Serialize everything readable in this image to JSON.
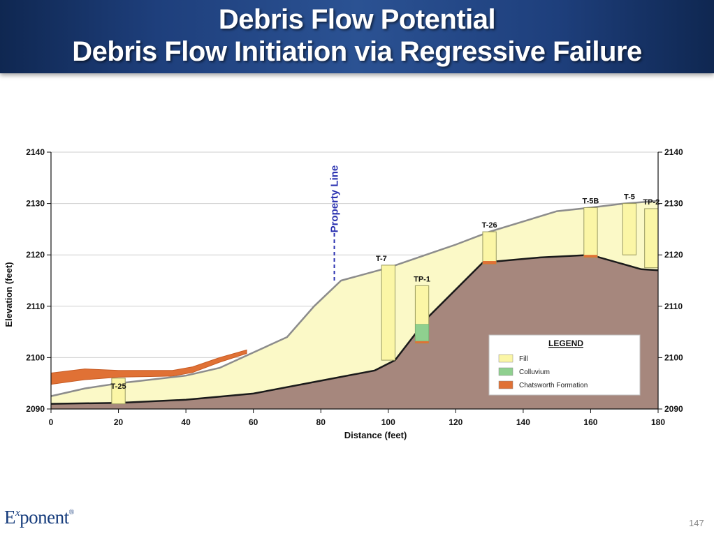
{
  "slide": {
    "title_line1": "Debris Flow Potential",
    "title_line2": "Debris Flow Initiation via Regressive Failure",
    "logo": {
      "main_start": "E",
      "superscript": "x",
      "main_end": "ponent",
      "registered": "®"
    },
    "page_number": "147"
  },
  "colors": {
    "title_bar": "#24488a",
    "fill": "#fbf9c7",
    "fill_boring": "#fbf6a6",
    "bedrock": "#a6877d",
    "colluvium": "#8fd08f",
    "chatsworth_formation": "#e07135",
    "ground_surface": "#8c8c8c",
    "property_line": "#2a31b0"
  },
  "chart_data": {
    "type": "cross-section",
    "xlabel": "Distance (feet)",
    "ylabel": "Elevation (feet)",
    "xlim": [
      0,
      180
    ],
    "ylim": [
      2090,
      2140
    ],
    "x_ticks": [
      "0",
      "20",
      "40",
      "60",
      "80",
      "100",
      "120",
      "140",
      "160",
      "180"
    ],
    "y_ticks": [
      "2090",
      "2100",
      "2110",
      "2120",
      "2130",
      "2140"
    ],
    "grid": true,
    "ground_surface": [
      [
        0,
        2092.5
      ],
      [
        10,
        2094
      ],
      [
        20,
        2095
      ],
      [
        40,
        2096.5
      ],
      [
        50,
        2098
      ],
      [
        60,
        2101
      ],
      [
        70,
        2104
      ],
      [
        78,
        2110
      ],
      [
        86,
        2115
      ],
      [
        100,
        2117.5
      ],
      [
        120,
        2122
      ],
      [
        130,
        2124.5
      ],
      [
        150,
        2128.5
      ],
      [
        160,
        2129.2
      ],
      [
        170,
        2130
      ],
      [
        180,
        2130.5
      ]
    ],
    "fill_base": [
      [
        0,
        2091
      ],
      [
        20,
        2091.2
      ],
      [
        40,
        2091.8
      ],
      [
        60,
        2093
      ],
      [
        80,
        2095.5
      ],
      [
        96,
        2097.5
      ],
      [
        102,
        2099.5
      ],
      [
        112,
        2108
      ],
      [
        128,
        2118.5
      ],
      [
        145,
        2119.5
      ],
      [
        160,
        2120
      ],
      [
        175,
        2117.2
      ],
      [
        180,
        2117
      ]
    ],
    "property_line": {
      "x": 84,
      "label": "Property Line"
    },
    "chatsworth_formation_band": {
      "top": [
        [
          0,
          2097
        ],
        [
          10,
          2097.8
        ],
        [
          20,
          2097.5
        ],
        [
          36,
          2097.5
        ],
        [
          42,
          2098.2
        ],
        [
          50,
          2100
        ],
        [
          58,
          2101.5
        ]
      ],
      "bottom": [
        [
          58,
          2100.8
        ],
        [
          50,
          2099.1
        ],
        [
          42,
          2097.1
        ],
        [
          36,
          2096.4
        ],
        [
          20,
          2096.2
        ],
        [
          10,
          2095.7
        ],
        [
          0,
          2094.8
        ]
      ]
    },
    "borings": [
      {
        "label": "T-25",
        "x": 20,
        "top": 2096,
        "bottom": 2091,
        "width": 4
      },
      {
        "label": "T-7",
        "x": 100,
        "top": 2118,
        "bottom": 2099.5,
        "width": 4
      },
      {
        "label": "TP-1",
        "x": 110,
        "top": 2114,
        "bottom": 2102.8,
        "width": 4,
        "colluvium": [
          2103.2,
          2106.5
        ],
        "chatsworth": [
          2102.8,
          2103.2
        ]
      },
      {
        "label": "T-26",
        "x": 130,
        "top": 2124.5,
        "bottom": 2118.2,
        "width": 4,
        "chatsworth": [
          2118.2,
          2118.8
        ]
      },
      {
        "label": "T-5B",
        "x": 160,
        "top": 2129.2,
        "bottom": 2119.5,
        "width": 4,
        "chatsworth": [
          2119.5,
          2120
        ]
      },
      {
        "label": "T-5",
        "x": 171.5,
        "top": 2130,
        "bottom": 2120,
        "width": 4
      },
      {
        "label": "TP-2",
        "x": 178,
        "top": 2129,
        "bottom": 2117.5,
        "width": 4
      }
    ],
    "legend": {
      "title": "LEGEND",
      "position": "lower-right",
      "items": [
        {
          "name": "Fill",
          "color": "#fbf6a6"
        },
        {
          "name": "Colluvium",
          "color": "#8fd08f"
        },
        {
          "name": "Chatsworth Formation",
          "color": "#e07135"
        }
      ]
    }
  }
}
